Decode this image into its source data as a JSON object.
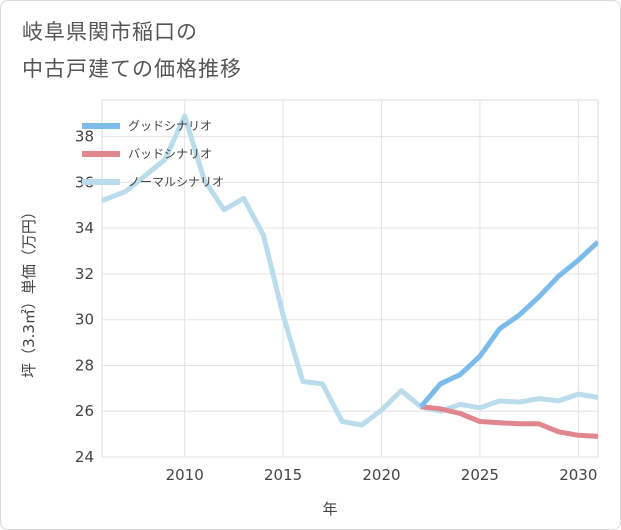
{
  "title_lines": [
    "岐阜県関市稲口の",
    "中古戸建ての価格推移"
  ],
  "chart_data": {
    "type": "line",
    "xlabel": "年",
    "ylabel": "坪（3.3㎡）単価（万円）",
    "xlim": [
      2005.8,
      2031
    ],
    "ylim": [
      24,
      39.6
    ],
    "xticks": [
      2010,
      2015,
      2020,
      2025,
      2030
    ],
    "yticks": [
      24,
      26,
      28,
      30,
      32,
      34,
      36,
      38
    ],
    "grid": true,
    "legend_position": "top-left",
    "series": [
      {
        "name": "グッドシナリオ",
        "color": "#7bbcea",
        "x": [
          2022,
          2023,
          2024,
          2025,
          2026,
          2027,
          2028,
          2029,
          2030,
          2031
        ],
        "y": [
          26.2,
          27.2,
          27.6,
          28.4,
          29.6,
          30.2,
          31.0,
          31.9,
          32.6,
          33.4
        ]
      },
      {
        "name": "バッドシナリオ",
        "color": "#e0868e",
        "x": [
          2022,
          2023,
          2024,
          2025,
          2026,
          2027,
          2028,
          2029,
          2030,
          2031
        ],
        "y": [
          26.2,
          26.1,
          25.9,
          25.55,
          25.5,
          25.45,
          25.45,
          25.1,
          24.95,
          24.9
        ]
      },
      {
        "name": "ノーマルシナリオ",
        "color": "#badcec",
        "x": [
          2005.8,
          2007,
          2008,
          2009,
          2010,
          2011,
          2012,
          2013,
          2014,
          2015,
          2016,
          2017,
          2018,
          2019,
          2020,
          2021,
          2022,
          2023,
          2024,
          2025,
          2026,
          2027,
          2028,
          2029,
          2030,
          2031
        ],
        "y": [
          35.2,
          35.6,
          36.3,
          37.0,
          38.9,
          36.1,
          34.8,
          35.3,
          33.7,
          30.2,
          27.3,
          27.2,
          25.55,
          25.4,
          26.05,
          26.9,
          26.2,
          26.0,
          26.3,
          26.15,
          26.45,
          26.4,
          26.55,
          26.45,
          26.75,
          26.6
        ]
      }
    ]
  }
}
